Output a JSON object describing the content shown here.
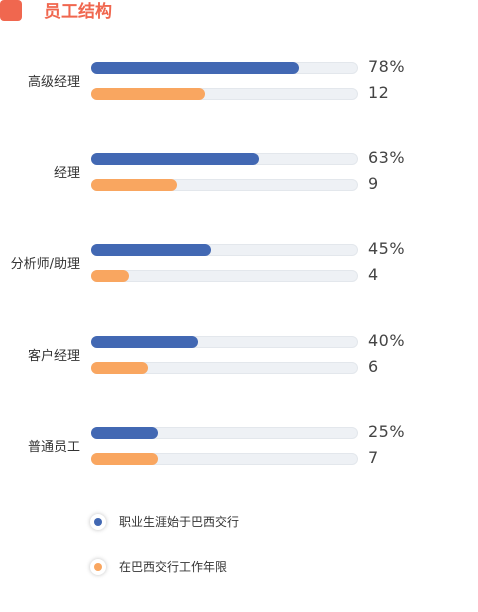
{
  "header": {
    "title": "员工结构"
  },
  "colors": {
    "accent": "#f0674f",
    "series_a": "#4268b3",
    "series_b": "#f9a660",
    "track": "#eef1f5"
  },
  "chart_data": {
    "type": "bar",
    "orientation": "horizontal",
    "categories": [
      "高级经理",
      "经理",
      "分析师/助理",
      "客户经理",
      "普通员工"
    ],
    "series": [
      {
        "name": "职业生涯始于巴西交行",
        "values": [
          78,
          63,
          45,
          40,
          25
        ],
        "labels": [
          "78%",
          "63%",
          "45%",
          "40%",
          "25%"
        ]
      },
      {
        "name": "在巴西交行工作年限",
        "values": [
          12,
          9,
          4,
          6,
          7
        ],
        "labels": [
          "12",
          "9",
          "4",
          "6",
          "7"
        ]
      }
    ],
    "ranges": [
      [
        0,
        100
      ],
      [
        0,
        28
      ]
    ],
    "legend": "bottom-left",
    "grid": false
  }
}
